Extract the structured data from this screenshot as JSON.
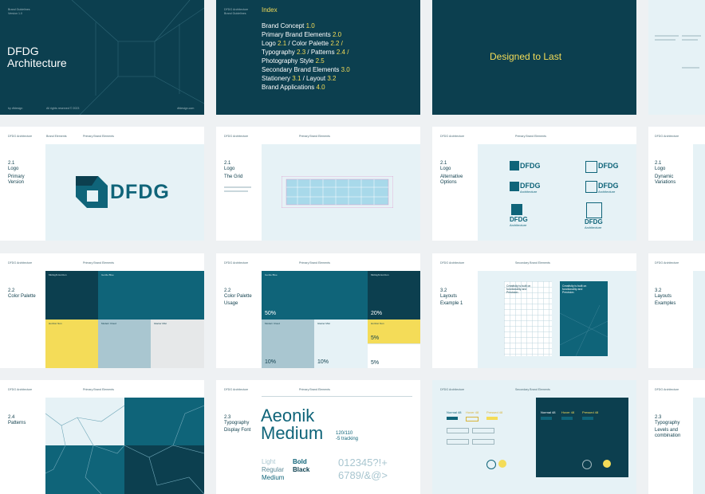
{
  "colors": {
    "dark_teal": "#0c3f4f",
    "teal": "#0f6479",
    "light_blue": "#a9c6d0",
    "yellow": "#f4dc58",
    "light_grey": "#e6e8e9",
    "pale_blue": "#e6f2f6"
  },
  "cover": {
    "title_line1": "DFDG",
    "title_line2": "Architecture",
    "top_left_small": "Brand Guidelines",
    "top_left_small2": "Version 1.0",
    "footer_left": "by dfdesign",
    "footer_mid": "All rights reserved © 2023",
    "footer_right": "dfdesign.com"
  },
  "index": {
    "label": "Index",
    "header_left": "DFDG Architecture",
    "header_sub": "Brand Guidelines",
    "items": [
      {
        "text": "Brand Concept",
        "num": "1.0"
      },
      {
        "text": "Primary Brand Elements",
        "num": "2.0"
      },
      {
        "text": "Logo",
        "num": "2.1"
      },
      {
        "text": " / Color Palette",
        "num": "2.2 /"
      },
      {
        "text": "Typography",
        "num": "2.3"
      },
      {
        "text": " / Patterns",
        "num": "2.4 /"
      },
      {
        "text": "Photography Style",
        "num": "2.5"
      },
      {
        "text": "Secondary Brand Elements",
        "num": "3.0"
      },
      {
        "text": "Stationery",
        "num": "3.1"
      },
      {
        "text": " / Layout",
        "num": "3.2"
      },
      {
        "text": "Brand Applications",
        "num": "4.0"
      }
    ]
  },
  "tagline": {
    "text": "Designed to Last"
  },
  "slides": {
    "header_brand": "DFDG Architecture",
    "header_section": "Brand Elements",
    "header_primary": "Primary Brand Elements",
    "header_secondary": "Secondary Brand Elements",
    "logo_primary": {
      "num": "2.1",
      "sect": "Logo",
      "title": "Primary Version",
      "word": "DFDG"
    },
    "logo_grid": {
      "num": "2.1",
      "sect": "Logo",
      "title": "The Grid"
    },
    "logo_alt": {
      "num": "2.1",
      "sect": "Logo",
      "title": "Alternative Options",
      "word": "DFDG",
      "sub": "Architecture"
    },
    "logo_dyn": {
      "num": "2.1",
      "sect": "Logo",
      "title": "Dynamic Variations"
    },
    "palette": {
      "num": "2.2",
      "sect": "Color Palette",
      "swatches": [
        "Midnight Horizon",
        "Gentle Blue",
        "Horizon Sun",
        "Modern Cloud",
        "Glacier Mist"
      ]
    },
    "usage": {
      "num": "2.2",
      "sect": "Color Palette",
      "title": "Usage",
      "pct": [
        "50%",
        "20%",
        "10%",
        "10%",
        "5%",
        "5%"
      ]
    },
    "layouts": {
      "num": "3.2",
      "sect": "Layouts",
      "title": "Example 1",
      "card_text": "Creativity is built on functionality and Precision."
    },
    "layouts2": {
      "num": "3.2",
      "sect": "Layouts",
      "title": "Examples"
    },
    "patterns": {
      "num": "2.4",
      "sect": "Patterns"
    },
    "typography": {
      "num": "2.3",
      "sect": "Typography",
      "title": "Display Font",
      "font_l1": "Aeonik",
      "font_l2": "Medium",
      "spec1": "120/110",
      "spec2": "-5 tracking",
      "weights_left": [
        "Light",
        "Regular",
        "Medium"
      ],
      "weights_right": [
        "Bold",
        "Black"
      ],
      "sample1": "012345?!+",
      "sample2": "6789/&@>"
    },
    "ui": {
      "btns": [
        "Normal 48",
        "Hover 48",
        "Pressed 48"
      ]
    },
    "levels": {
      "num": "2.3",
      "sect": "Typography",
      "title": "Levels and combination"
    }
  }
}
